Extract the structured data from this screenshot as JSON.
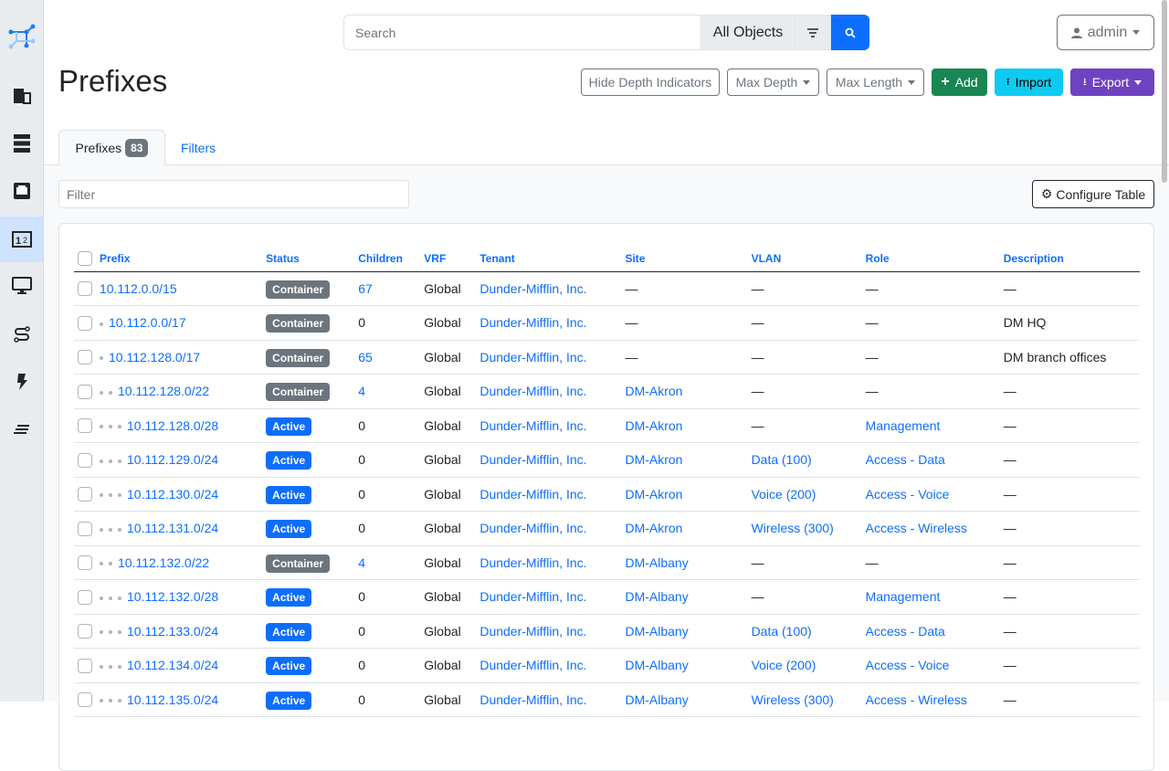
{
  "sidebar": {
    "items": [
      {
        "icon": "building-icon"
      },
      {
        "icon": "server-icon"
      },
      {
        "icon": "ethernet-port-icon"
      },
      {
        "icon": "ipam-numbers-icon",
        "active": true
      },
      {
        "icon": "monitor-icon"
      },
      {
        "icon": "circuit-icon"
      },
      {
        "icon": "power-icon"
      },
      {
        "icon": "menu-lines-icon"
      }
    ]
  },
  "search": {
    "placeholder": "Search",
    "scope": "All Objects"
  },
  "user": {
    "label": "admin"
  },
  "page": {
    "title": "Prefixes"
  },
  "actions": {
    "hide_depth": "Hide Depth Indicators",
    "max_depth": "Max Depth",
    "max_length": "Max Length",
    "add": "Add",
    "import": "Import",
    "export": "Export"
  },
  "tabs": {
    "prefixes": "Prefixes",
    "count": "83",
    "filters": "Filters"
  },
  "filter": {
    "placeholder": "Filter"
  },
  "configure": "Configure Table",
  "colors": {
    "primary": "#0d6efd",
    "container": "#6c757d",
    "active": "#0d6efd",
    "add": "#198754",
    "import": "#0dcaf0",
    "export": "#6f42c1"
  },
  "table": {
    "columns": [
      "Prefix",
      "Status",
      "Children",
      "VRF",
      "Tenant",
      "Site",
      "VLAN",
      "Role",
      "Description"
    ],
    "rows": [
      {
        "prefix": "10.112.0.0/15",
        "depth": 0,
        "status": "Container",
        "children": "67",
        "vrf": "Global",
        "tenant": "Dunder-Mifflin, Inc.",
        "site": "—",
        "vlan": "—",
        "role": "—",
        "description": "—"
      },
      {
        "prefix": "10.112.0.0/17",
        "depth": 1,
        "status": "Container",
        "children": "0",
        "vrf": "Global",
        "tenant": "Dunder-Mifflin, Inc.",
        "site": "—",
        "vlan": "—",
        "role": "—",
        "description": "DM HQ"
      },
      {
        "prefix": "10.112.128.0/17",
        "depth": 1,
        "status": "Container",
        "children": "65",
        "vrf": "Global",
        "tenant": "Dunder-Mifflin, Inc.",
        "site": "—",
        "vlan": "—",
        "role": "—",
        "description": "DM branch offices"
      },
      {
        "prefix": "10.112.128.0/22",
        "depth": 2,
        "status": "Container",
        "children": "4",
        "vrf": "Global",
        "tenant": "Dunder-Mifflin, Inc.",
        "site": "DM-Akron",
        "vlan": "—",
        "role": "—",
        "description": "—"
      },
      {
        "prefix": "10.112.128.0/28",
        "depth": 3,
        "status": "Active",
        "children": "0",
        "vrf": "Global",
        "tenant": "Dunder-Mifflin, Inc.",
        "site": "DM-Akron",
        "vlan": "—",
        "role": "Management",
        "description": "—"
      },
      {
        "prefix": "10.112.129.0/24",
        "depth": 3,
        "status": "Active",
        "children": "0",
        "vrf": "Global",
        "tenant": "Dunder-Mifflin, Inc.",
        "site": "DM-Akron",
        "vlan": "Data (100)",
        "role": "Access - Data",
        "description": "—"
      },
      {
        "prefix": "10.112.130.0/24",
        "depth": 3,
        "status": "Active",
        "children": "0",
        "vrf": "Global",
        "tenant": "Dunder-Mifflin, Inc.",
        "site": "DM-Akron",
        "vlan": "Voice (200)",
        "role": "Access - Voice",
        "description": "—"
      },
      {
        "prefix": "10.112.131.0/24",
        "depth": 3,
        "status": "Active",
        "children": "0",
        "vrf": "Global",
        "tenant": "Dunder-Mifflin, Inc.",
        "site": "DM-Akron",
        "vlan": "Wireless (300)",
        "role": "Access - Wireless",
        "description": "—"
      },
      {
        "prefix": "10.112.132.0/22",
        "depth": 2,
        "status": "Container",
        "children": "4",
        "vrf": "Global",
        "tenant": "Dunder-Mifflin, Inc.",
        "site": "DM-Albany",
        "vlan": "—",
        "role": "—",
        "description": "—"
      },
      {
        "prefix": "10.112.132.0/28",
        "depth": 3,
        "status": "Active",
        "children": "0",
        "vrf": "Global",
        "tenant": "Dunder-Mifflin, Inc.",
        "site": "DM-Albany",
        "vlan": "—",
        "role": "Management",
        "description": "—"
      },
      {
        "prefix": "10.112.133.0/24",
        "depth": 3,
        "status": "Active",
        "children": "0",
        "vrf": "Global",
        "tenant": "Dunder-Mifflin, Inc.",
        "site": "DM-Albany",
        "vlan": "Data (100)",
        "role": "Access - Data",
        "description": "—"
      },
      {
        "prefix": "10.112.134.0/24",
        "depth": 3,
        "status": "Active",
        "children": "0",
        "vrf": "Global",
        "tenant": "Dunder-Mifflin, Inc.",
        "site": "DM-Albany",
        "vlan": "Voice (200)",
        "role": "Access - Voice",
        "description": "—"
      },
      {
        "prefix": "10.112.135.0/24",
        "depth": 3,
        "status": "Active",
        "children": "0",
        "vrf": "Global",
        "tenant": "Dunder-Mifflin, Inc.",
        "site": "DM-Albany",
        "vlan": "Wireless (300)",
        "role": "Access - Wireless",
        "description": "—"
      }
    ]
  }
}
